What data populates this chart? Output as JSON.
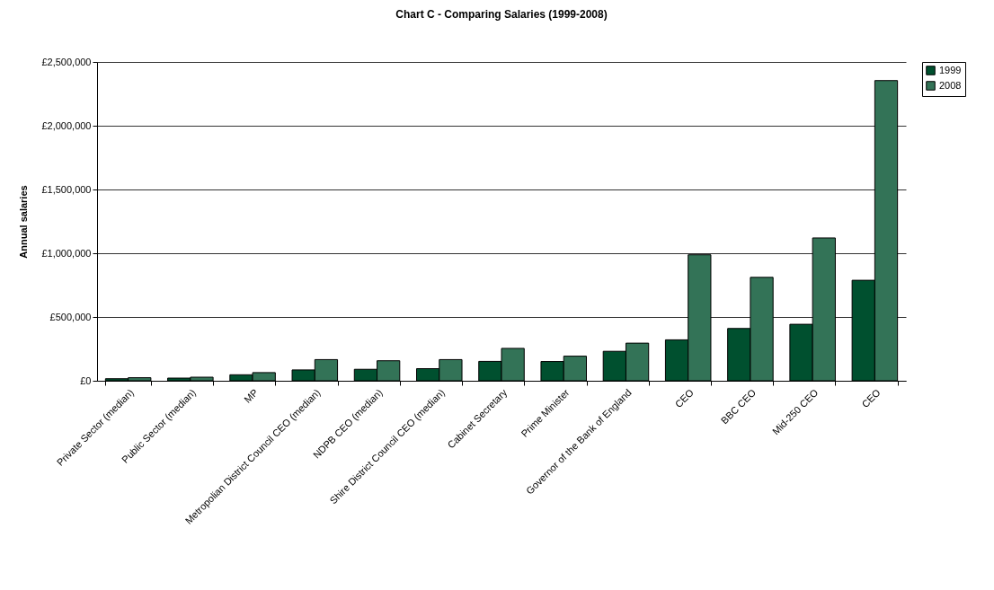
{
  "chart_data": {
    "type": "bar",
    "title": "Chart C - Comparing Salaries (1999-2008)",
    "ylabel": "Annual salaries",
    "categories": [
      "Private Sector (median)",
      "Public Sector (median)",
      "MP",
      "Metropolian District Council CEO (median)",
      "NDPB CEO (median)",
      "Shire District Council CEO (median)",
      "Cabinet Secretary",
      "Prime Minister",
      "Governor of the Bank of England",
      "CEO",
      "BBC CEO",
      "Mid-250 CEO",
      "CEO"
    ],
    "series": [
      {
        "name": "1999",
        "color": "#00502f",
        "values": [
          16000,
          21000,
          47000,
          85000,
          90000,
          95000,
          152000,
          151000,
          231000,
          321000,
          410000,
          443000,
          788000
        ]
      },
      {
        "name": "2008",
        "color": "#337357",
        "values": [
          24000,
          28000,
          64000,
          166000,
          157000,
          166000,
          254000,
          193000,
          295000,
          988000,
          811000,
          1120000,
          2354000
        ]
      }
    ],
    "ylim": [
      0,
      2500000
    ],
    "yticks": [
      {
        "value": 0,
        "label": "£0"
      },
      {
        "value": 500000,
        "label": "£500,000"
      },
      {
        "value": 1000000,
        "label": "£1,000,000"
      },
      {
        "value": 1500000,
        "label": "£1,500,000"
      },
      {
        "value": 2000000,
        "label": "£2,000,000"
      },
      {
        "value": 2500000,
        "label": "£2,500,000"
      }
    ],
    "grid": "y",
    "legend": "right"
  }
}
